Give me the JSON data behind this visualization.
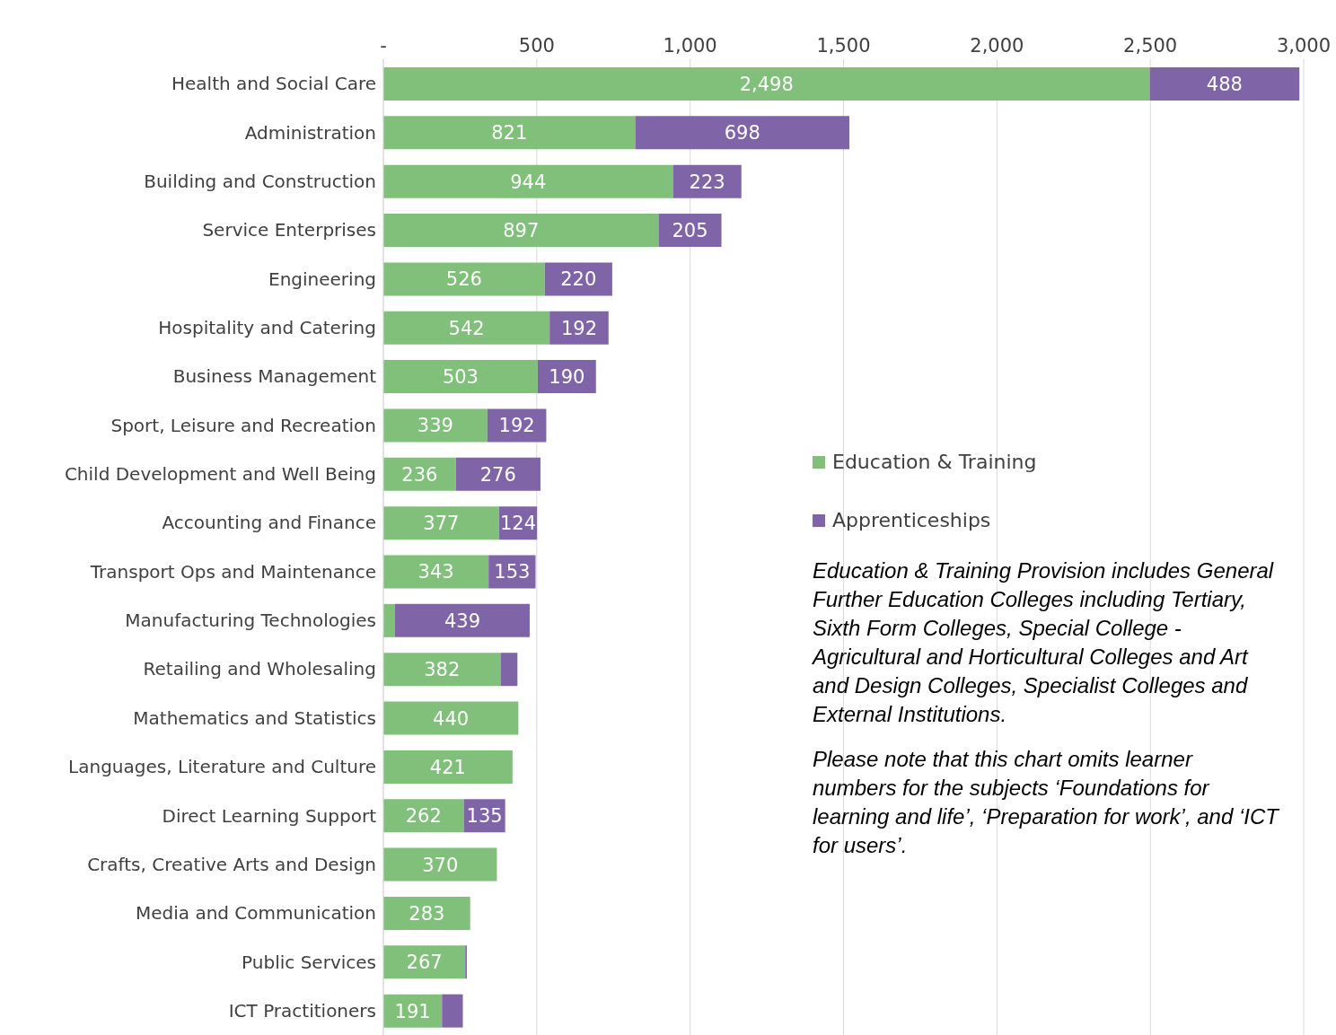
{
  "chart_data": {
    "type": "bar",
    "orientation": "horizontal",
    "stacked": true,
    "categories": [
      "Health and Social Care",
      "Administration",
      "Building and Construction",
      "Service Enterprises",
      "Engineering",
      "Hospitality and Catering",
      "Business Management",
      "Sport, Leisure and Recreation",
      "Child Development and Well Being",
      "Accounting and Finance",
      "Transport Ops and Maintenance",
      "Manufacturing Technologies",
      "Retailing and Wholesaling",
      "Mathematics and Statistics",
      "Languages, Literature and Culture",
      "Direct Learning Support",
      "Crafts, Creative Arts and Design",
      "Media and Communication",
      "Public Services",
      "ICT Practitioners"
    ],
    "series": [
      {
        "name": "Education & Training",
        "color": "#80c07a",
        "values": [
          2498,
          821,
          944,
          897,
          526,
          542,
          503,
          339,
          236,
          377,
          343,
          38,
          382,
          440,
          421,
          262,
          370,
          283,
          267,
          191
        ],
        "value_labels": [
          "2,498",
          "821",
          "944",
          "897",
          "526",
          "542",
          "503",
          "339",
          "236",
          "377",
          "343",
          null,
          "382",
          "440",
          "421",
          "262",
          "370",
          "283",
          "267",
          "191"
        ]
      },
      {
        "name": "Apprenticeships",
        "color": "#8064a8",
        "values": [
          488,
          698,
          223,
          205,
          220,
          192,
          190,
          192,
          276,
          124,
          153,
          439,
          55,
          0,
          0,
          135,
          0,
          0,
          5,
          68
        ],
        "value_labels": [
          "488",
          "698",
          "223",
          "205",
          "220",
          "192",
          "190",
          "192",
          "276",
          "124",
          "153",
          "439",
          null,
          null,
          null,
          "135",
          null,
          null,
          null,
          null
        ]
      }
    ],
    "xlim": [
      0,
      3000
    ],
    "xticks": [
      {
        "value": 0,
        "label": "-"
      },
      500,
      {
        "value": 1000,
        "label": "1,000"
      },
      {
        "value": 1500,
        "label": "1,500"
      },
      {
        "value": 2000,
        "label": "2,000"
      },
      {
        "value": 2500,
        "label": "2,500"
      },
      {
        "value": 3000,
        "label": "3,000"
      }
    ],
    "grid": "x",
    "legend": "right",
    "annotations": [
      "Education & Training Provision includes General Further Education Colleges including Tertiary, Sixth Form Colleges, Special College - Agricultural and Horticultural Colleges and Art and Design Colleges, Specialist Colleges and External Institutions.",
      "Please note that this chart omits learner numbers for the subjects ‘Foundations for learning and life’, ‘Preparation for work’, and ‘ICT for users’."
    ]
  }
}
